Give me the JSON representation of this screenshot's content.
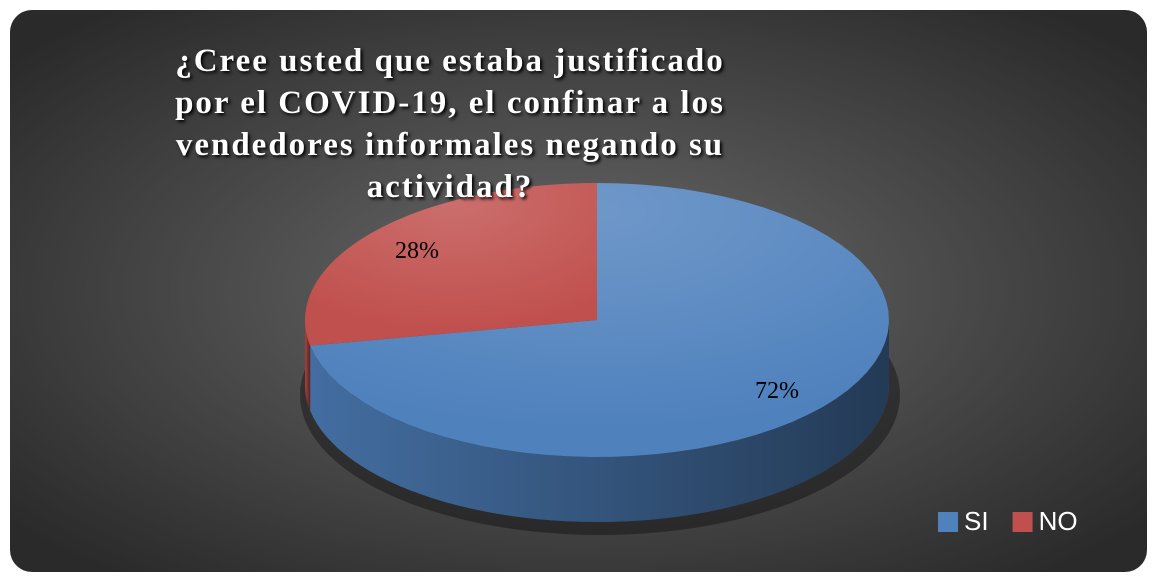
{
  "chart_data": {
    "type": "pie",
    "title": "¿Cree usted que estaba justificado por el COVID-19, el confinar a los vendedores informales negando su actividad?",
    "categories": [
      "SI",
      "NO"
    ],
    "values": [
      72,
      28
    ],
    "value_labels": [
      "72%",
      "28%"
    ],
    "colors": [
      "#4f81bd",
      "#c0504d"
    ],
    "legend": "bottom-right"
  }
}
